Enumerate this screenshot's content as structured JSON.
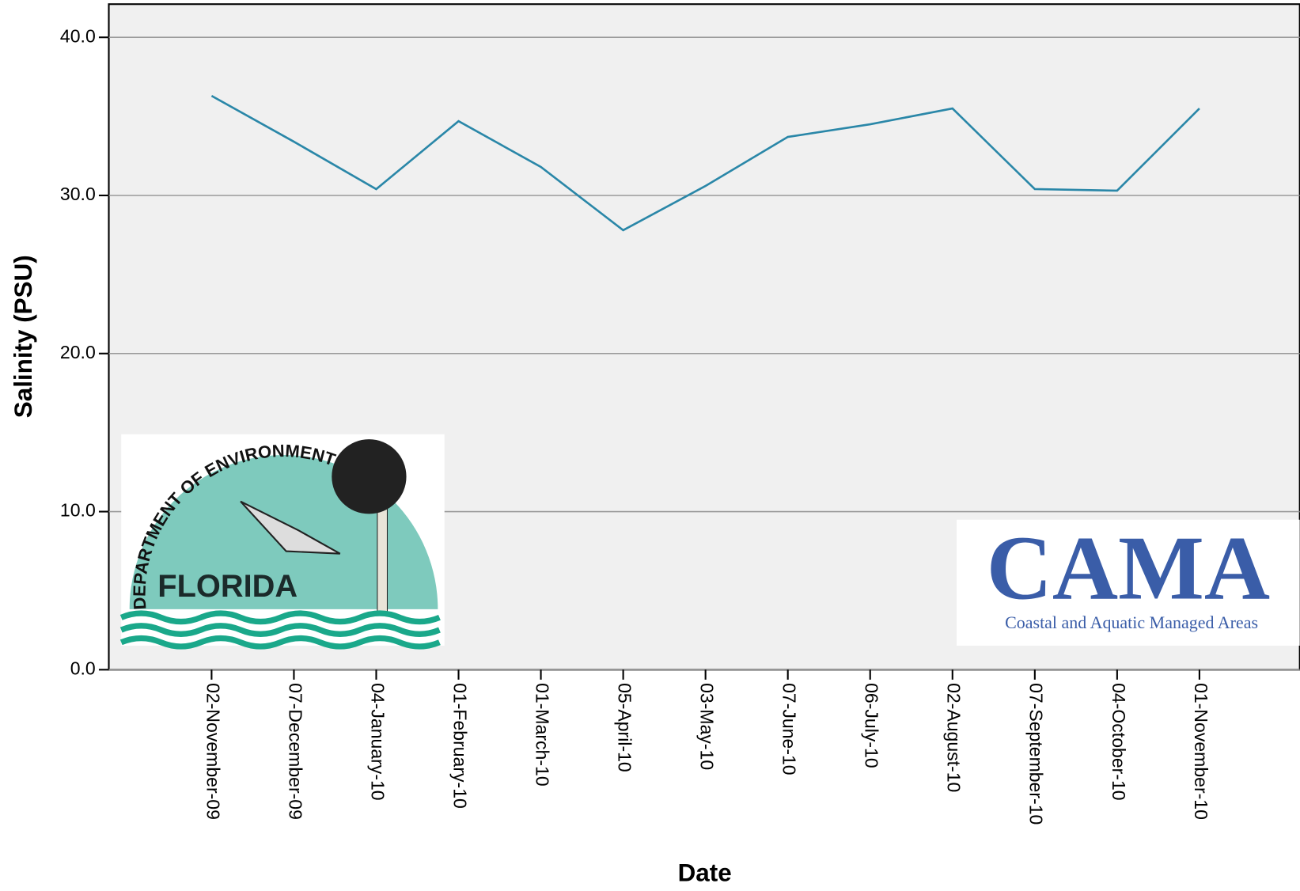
{
  "chart_data": {
    "type": "line",
    "x_label": "Date",
    "y_label": "Salinity (PSU)",
    "categories": [
      "02-November-09",
      "07-December-09",
      "04-January-10",
      "01-February-10",
      "01-March-10",
      "05-April-10",
      "03-May-10",
      "07-June-10",
      "06-July-10",
      "02-August-10",
      "07-September-10",
      "04-October-10",
      "01-November-10"
    ],
    "series": [
      {
        "name": "Salinity",
        "color": "#2a87a8",
        "values": [
          36.3,
          33.4,
          30.4,
          34.7,
          31.8,
          27.8,
          30.6,
          33.7,
          34.5,
          35.5,
          30.4,
          30.3,
          35.5
        ]
      }
    ],
    "ylim": [
      0,
      42.1
    ],
    "yticks": [
      {
        "value": 0,
        "label": "0.0"
      },
      {
        "value": 10,
        "label": "10.0"
      },
      {
        "value": 20,
        "label": "20.0"
      },
      {
        "value": 30,
        "label": "30.0"
      },
      {
        "value": 40,
        "label": "40.0"
      }
    ],
    "grid": true,
    "logos": {
      "florida_arc": "DEPARTMENT OF ENVIRONMENTAL PROTECTION",
      "florida": "FLORIDA",
      "cama": "CAMA",
      "cama_sub": "Coastal and Aquatic Managed Areas"
    }
  }
}
